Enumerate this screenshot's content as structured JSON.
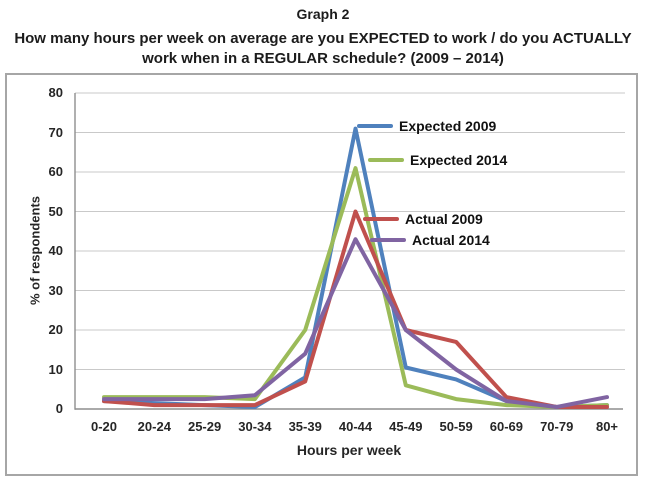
{
  "figure": {
    "title": "Graph 2",
    "subtitle_lines": [
      "How many hours per week on average are you EXPECTED to work / do you ACTUALLY",
      "work when in a REGULAR schedule? (2009 – 2014)"
    ]
  },
  "chart_data": {
    "type": "line",
    "title": "Graph 2",
    "subtitle": "How many hours per week on average are you EXPECTED to work / do you ACTUALLY work when in a REGULAR schedule? (2009 – 2014)",
    "xlabel": "Hours per week",
    "ylabel": "% of respondents",
    "ylim": [
      0,
      80
    ],
    "ytick_step": 10,
    "grid": "horizontal gridlines on",
    "legend_position": "floating labels right of peak",
    "categories": [
      "0-20",
      "20-24",
      "25-29",
      "30-34",
      "35-39",
      "40-44",
      "45-49",
      "50-59",
      "60-69",
      "70-79",
      "80+"
    ],
    "series": [
      {
        "name": "Expected 2009",
        "color": "#4F81BD",
        "values": [
          2,
          1.5,
          1,
          0.5,
          8,
          71,
          10.5,
          7.5,
          2,
          0.5,
          1
        ]
      },
      {
        "name": "Expected 2014",
        "color": "#9BBB59",
        "values": [
          3,
          3,
          3,
          2.5,
          20,
          61,
          6,
          2.5,
          1,
          0.5,
          1
        ]
      },
      {
        "name": "Actual 2009",
        "color": "#C0504D",
        "values": [
          2,
          1,
          1,
          1,
          7,
          50,
          20,
          17,
          3,
          0.5,
          0.5
        ]
      },
      {
        "name": "Actual 2014",
        "color": "#8064A2",
        "values": [
          2.5,
          2.5,
          2.5,
          3.5,
          14,
          43,
          20,
          10,
          2,
          0.5,
          3
        ]
      }
    ]
  },
  "colors": {
    "gridline": "#c9c9c9",
    "axis": "#8e8e8e",
    "chart_border": "#a6a6a6",
    "text": "#262626"
  }
}
